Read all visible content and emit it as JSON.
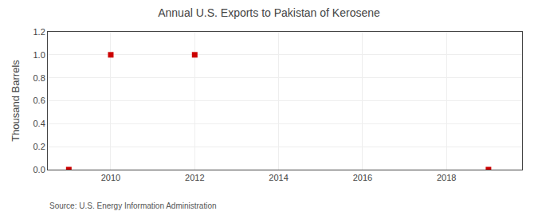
{
  "chart_data": {
    "type": "scatter",
    "title": "Annual U.S. Exports to Pakistan of Kerosene",
    "ylabel": "Thousand Barrels",
    "source": "Source: U.S. Energy Information Administration",
    "x": [
      2009,
      2010,
      2012,
      2019
    ],
    "values": [
      0.0,
      1.0,
      1.0,
      0.0
    ],
    "color": "#cc0000",
    "marker": "square",
    "xlim": [
      2008.5,
      2019.8
    ],
    "xticks": [
      2010,
      2012,
      2014,
      2016,
      2018
    ],
    "ylim": [
      0,
      1.2
    ],
    "yticks": [
      {
        "value": 0,
        "label": "0.0"
      },
      0.2,
      0.4,
      0.6,
      0.8,
      {
        "value": 1,
        "label": "1.0"
      },
      1.2
    ],
    "grid": true
  }
}
